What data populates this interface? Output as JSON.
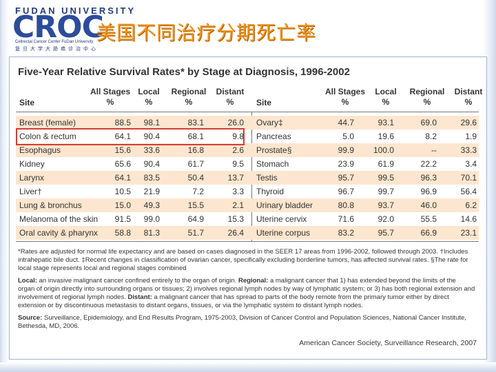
{
  "header": {
    "university": "FUDAN UNIVERSITY",
    "logo_text": "CROC",
    "center_name": "Cellrectal Cancer Center FuDan University",
    "center_name_cn": "复旦大学大肠癌诊治中心",
    "slide_title": "美国不同治疗分期死亡率"
  },
  "figure": {
    "title": "Five-Year Relative Survival Rates* by Stage at Diagnosis, 1996-2002",
    "columns": {
      "site": "Site",
      "all_stages": "All Stages",
      "local": "Local",
      "regional": "Regional",
      "distant": "Distant",
      "pct": "%"
    },
    "left_rows": [
      {
        "site": "Breast (female)",
        "all": "88.5",
        "local": "98.1",
        "regional": "83.1",
        "distant": "26.0"
      },
      {
        "site": "Colon & rectum",
        "all": "64.1",
        "local": "90.4",
        "regional": "68.1",
        "distant": "9.8"
      },
      {
        "site": "Esophagus",
        "all": "15.6",
        "local": "33.6",
        "regional": "16.8",
        "distant": "2.6"
      },
      {
        "site": "Kidney",
        "all": "65.6",
        "local": "90.4",
        "regional": "61.7",
        "distant": "9.5"
      },
      {
        "site": "Larynx",
        "all": "64.1",
        "local": "83.5",
        "regional": "50.4",
        "distant": "13.7"
      },
      {
        "site": "Liver†",
        "all": "10.5",
        "local": "21.9",
        "regional": "7.2",
        "distant": "3.3"
      },
      {
        "site": "Lung & bronchus",
        "all": "15.0",
        "local": "49.3",
        "regional": "15.5",
        "distant": "2.1"
      },
      {
        "site": "Melanoma of the skin",
        "all": "91.5",
        "local": "99.0",
        "regional": "64.9",
        "distant": "15.3"
      },
      {
        "site": "Oral cavity & pharynx",
        "all": "58.8",
        "local": "81.3",
        "regional": "51.7",
        "distant": "26.4"
      }
    ],
    "right_rows": [
      {
        "site": "Ovary‡",
        "all": "44.7",
        "local": "93.1",
        "regional": "69.0",
        "distant": "29.6"
      },
      {
        "site": "Pancreas",
        "all": "5.0",
        "local": "19.6",
        "regional": "8.2",
        "distant": "1.9"
      },
      {
        "site": "Prostate§",
        "all": "99.9",
        "local": "100.0",
        "regional": "--",
        "distant": "33.3"
      },
      {
        "site": "Stomach",
        "all": "23.9",
        "local": "61.9",
        "regional": "22.2",
        "distant": "3.4"
      },
      {
        "site": "Testis",
        "all": "95.7",
        "local": "99.5",
        "regional": "96.3",
        "distant": "70.1"
      },
      {
        "site": "Thyroid",
        "all": "96.7",
        "local": "99.7",
        "regional": "96.9",
        "distant": "56.4"
      },
      {
        "site": "Urinary bladder",
        "all": "80.8",
        "local": "93.7",
        "regional": "46.0",
        "distant": "6.2"
      },
      {
        "site": "Uterine cervix",
        "all": "71.6",
        "local": "92.0",
        "regional": "55.5",
        "distant": "14.6"
      },
      {
        "site": "Uterine corpus",
        "all": "83.2",
        "local": "95.7",
        "regional": "66.9",
        "distant": "23.1"
      }
    ],
    "footnotes": {
      "line1": "*Rates are adjusted for normal life expectancy and are based on cases diagnosed in the SEER 17 areas from 1996-2002, followed through 2003. †Includes",
      "line2": "intrahepatic bile duct. ‡Recent changes in classification of ovarian cancer, specifically excluding borderline tumors, has affected survival rates. §The rate for",
      "line3": "local stage represents local and regional stages combined",
      "local_label": "Local:",
      "local_text": " an invasive malignant cancer confined entirely to the organ of origin. ",
      "regional_label": "Regional:",
      "regional_text": " a malignant cancer that 1) has extended beyond the limits of the",
      "line5": "organ of origin directly into surrounding organs or tissues; 2) involves regional lymph nodes by way of lymphatic system; or 3) has both regional extension and",
      "line6_a": "involvement of regional lymph nodes. ",
      "distant_label": "Distant:",
      "line6_b": " a malignant cancer that has spread to parts of the body remote from the primary tumor either by direct",
      "line7": "extension or by discontinuous metastasis to distant organs, tissues, or via the lymphatic system to distant lymph nodes.",
      "source_label": "Source:",
      "source_text": " Surveillance, Epidemiology, and End Results Program, 1975-2003, Division of Cancer Control and Population Sciences, National Cancer Institute,",
      "line9": "Bethesda, MD, 2006."
    },
    "credit": "American Cancer Society, Surveillance Research, 2007"
  },
  "colors": {
    "title_orange": "#f3961f",
    "logo_blue": "#2c4c9c",
    "row_band": "#fde6cf",
    "highlight_red": "#d73b35"
  }
}
